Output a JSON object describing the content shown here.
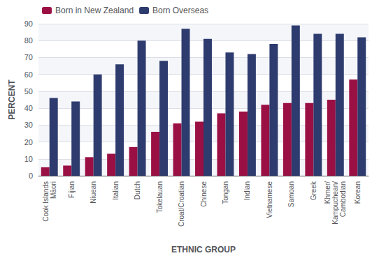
{
  "chart_data": {
    "type": "bar",
    "categories": [
      "Cook Islands\nMāori",
      "Fijian",
      "Niuean",
      "Italian",
      "Dutch",
      "Tokelauan",
      "Croat/Croatian",
      "Chinese",
      "Tongan",
      "Indian",
      "Vietnamese",
      "Samoan",
      "Greek",
      "Khmer/\nKampuchean/\nCambodian",
      "Korean"
    ],
    "series": [
      {
        "name": "Born in New Zealand",
        "color": "#9B1044",
        "values": [
          5,
          6,
          11,
          13,
          17,
          26,
          31,
          32,
          37,
          38,
          42,
          43,
          43,
          45,
          57
        ]
      },
      {
        "name": "Born Overseas",
        "color": "#2E3B6E",
        "values": [
          46,
          44,
          60,
          66,
          80,
          68,
          87,
          81,
          73,
          72,
          78,
          89,
          84,
          84,
          82
        ]
      }
    ],
    "xlabel": "ETHNIC GROUP",
    "ylabel": "PERCENT",
    "ylim": [
      0,
      90
    ],
    "yticks": [
      0,
      10,
      20,
      30,
      40,
      50,
      60,
      70,
      80,
      90
    ],
    "grid": true,
    "legend": "upper left"
  }
}
